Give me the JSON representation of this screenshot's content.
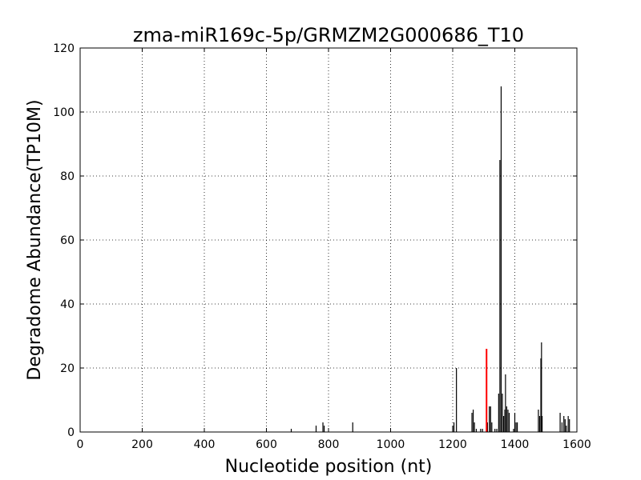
{
  "chart_data": {
    "type": "bar",
    "title": "zma-miR169c-5p/GRMZM2G000686_T10",
    "xlabel": "Nucleotide position (nt)",
    "ylabel": "Degradome Abundance(TP10M)",
    "xlim": [
      0,
      1600
    ],
    "ylim": [
      0,
      120
    ],
    "xticks": [
      "0",
      "200",
      "400",
      "600",
      "800",
      "1000",
      "1200",
      "1400",
      "1600"
    ],
    "yticks": [
      "0",
      "20",
      "40",
      "60",
      "80",
      "100",
      "120"
    ],
    "grid": true,
    "legend": "none",
    "colors": {
      "bars": "#000000",
      "highlight": "#ff0000"
    },
    "series": [
      {
        "x": [
          680,
          760,
          782,
          786,
          878,
          1200,
          1204,
          1212,
          1262,
          1266,
          1270,
          1276,
          1290,
          1296,
          1312,
          1318,
          1322,
          1326,
          1336,
          1342,
          1348,
          1352,
          1356,
          1360,
          1364,
          1368,
          1370,
          1374,
          1378,
          1382,
          1396,
          1400,
          1404,
          1408,
          1476,
          1480,
          1484,
          1486,
          1488,
          1546,
          1552,
          1558,
          1562,
          1566,
          1572,
          1576
        ],
        "values": [
          1,
          2,
          3,
          2,
          3,
          2,
          3,
          20,
          6,
          7,
          3,
          1,
          1,
          1,
          3,
          8,
          8,
          3,
          1,
          1,
          12,
          85,
          108,
          12,
          5,
          7,
          18,
          8,
          7,
          6,
          1,
          6,
          3,
          3,
          7,
          5,
          23,
          28,
          5,
          6,
          3,
          5,
          4,
          2,
          5,
          4
        ]
      },
      {
        "x": [
          1309
        ],
        "values": [
          26
        ]
      }
    ]
  }
}
